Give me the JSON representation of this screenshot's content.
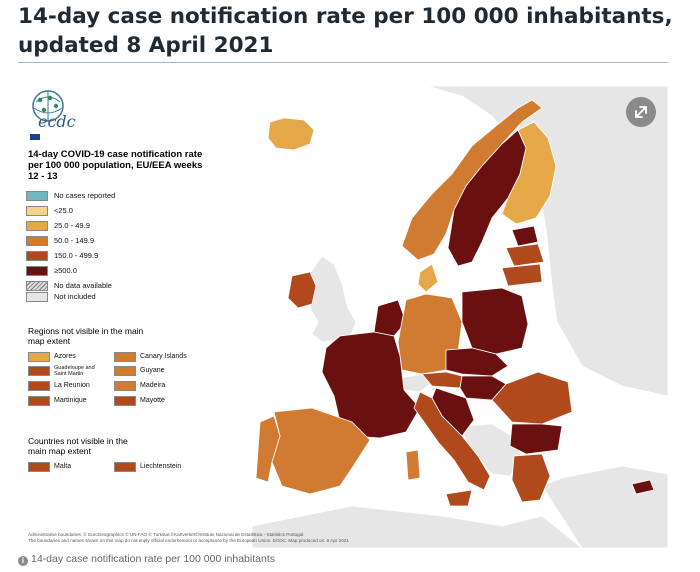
{
  "title": "14-day case notification rate per 100 000 inhabitants, updated 8 April 2021",
  "caption": "14-day case notification rate per 100 000 inhabitants",
  "logo_text": "ecdc",
  "map": {
    "legend_title": "14-day COVID-19 case notification rate per 100 000 population, EU/EEA weeks 12 - 13",
    "legend": [
      {
        "label": "No cases reported",
        "color": "#6fb8c0"
      },
      {
        "label": "<25.0",
        "color": "#f5d58a"
      },
      {
        "label": "25.0 - 49.9",
        "color": "#e4a849"
      },
      {
        "label": "50.0 - 149.9",
        "color": "#d07a32"
      },
      {
        "label": "150.0 - 499.9",
        "color": "#b04a1c"
      },
      {
        "label": "≥500.0",
        "color": "#6b1010"
      },
      {
        "label": "No data available",
        "color": "hatched"
      },
      {
        "label": "Not included",
        "color": "#e6e6e6"
      }
    ],
    "regions_heading": "Regions not visible in the main map extent",
    "regions": [
      {
        "label": "Azores",
        "color": "#e4a849"
      },
      {
        "label": "Canary Islands",
        "color": "#d07a32"
      },
      {
        "label": "Guadeloupe and Saint Martin",
        "color": "#b04a1c"
      },
      {
        "label": "Guyane",
        "color": "#d07a32"
      },
      {
        "label": "La Reunion",
        "color": "#b04a1c"
      },
      {
        "label": "Madeira",
        "color": "#d07a32"
      },
      {
        "label": "Martinique",
        "color": "#b04a1c"
      },
      {
        "label": "Mayotte",
        "color": "#b04a1c"
      }
    ],
    "countries_heading": "Countries not visible in the main map extent",
    "countries": [
      {
        "label": "Malta",
        "color": "#b04a1c"
      },
      {
        "label": "Liechtenstein",
        "color": "#b04a1c"
      }
    ],
    "footnote_1": "Administrative boundaries: © EuroGeographics © UN-FAO © Turkstat.©Kartverket©Instituto Nacional de Estatística - Statistics Portugal.",
    "footnote_2": "The boundaries and names shown on this map do not imply official endorsement or acceptance by the European Union. ECDC. Map produced on: 8 Apr 2021",
    "colors": {
      "sea": "#ffffff",
      "non_eu": "#e6e6e6",
      "band_lt25": "#f5d58a",
      "band_25_49": "#e4a849",
      "band_50_149": "#d07a32",
      "band_150_499": "#b04a1c",
      "band_ge500": "#6b1010"
    }
  }
}
